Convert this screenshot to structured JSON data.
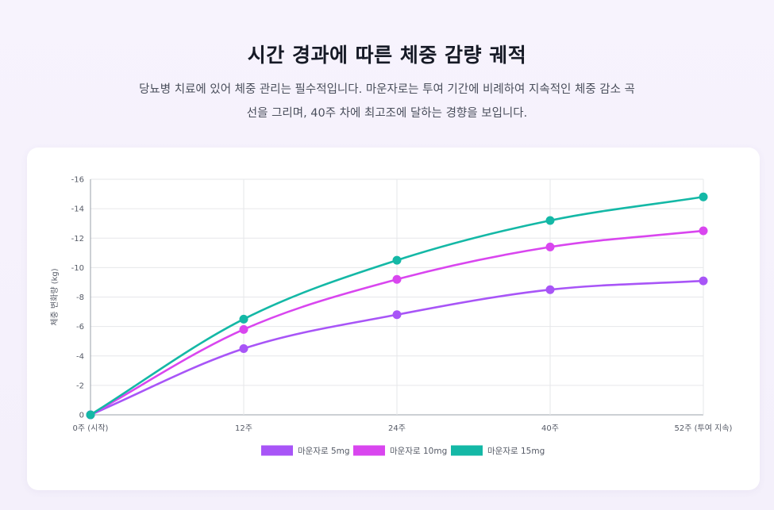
{
  "header": {
    "title": "시간 경과에 따른 체중 감량 궤적",
    "subtitle_line1": "당뇨병 치료에 있어 체중 관리는 필수적입니다. 마운자로는 투여 기간에 비례하여 지속적인 체중 감소 곡",
    "subtitle_line2": "선을 그리며, 40주 차에 최고조에 달하는 경향을 보입니다."
  },
  "chart_data": {
    "type": "line",
    "title": "",
    "xlabel": "",
    "ylabel": "체중 변화량 (kg)",
    "categories": [
      "0주 (시작)",
      "12주",
      "24주",
      "40주",
      "52주 (투여 지속)"
    ],
    "ylim": [
      0,
      -16
    ],
    "yticks": [
      0,
      -2,
      -4,
      -6,
      -8,
      -10,
      -12,
      -14,
      -16
    ],
    "ytick_labels": [
      "0",
      "-2",
      "-4",
      "-6",
      "-8",
      "-10",
      "-12",
      "-14",
      "-16"
    ],
    "grid": true,
    "legend_position": "bottom",
    "series": [
      {
        "name": "마운자로 5mg",
        "color": "#a855f7",
        "values": [
          0,
          -4.5,
          -6.8,
          -8.5,
          -9.1
        ]
      },
      {
        "name": "마운자로 10mg",
        "color": "#d946ef",
        "values": [
          0,
          -5.8,
          -9.2,
          -11.4,
          -12.5
        ]
      },
      {
        "name": "마운자로 15mg",
        "color": "#14b8a6",
        "values": [
          0,
          -6.5,
          -10.5,
          -13.2,
          -14.8
        ]
      }
    ]
  }
}
